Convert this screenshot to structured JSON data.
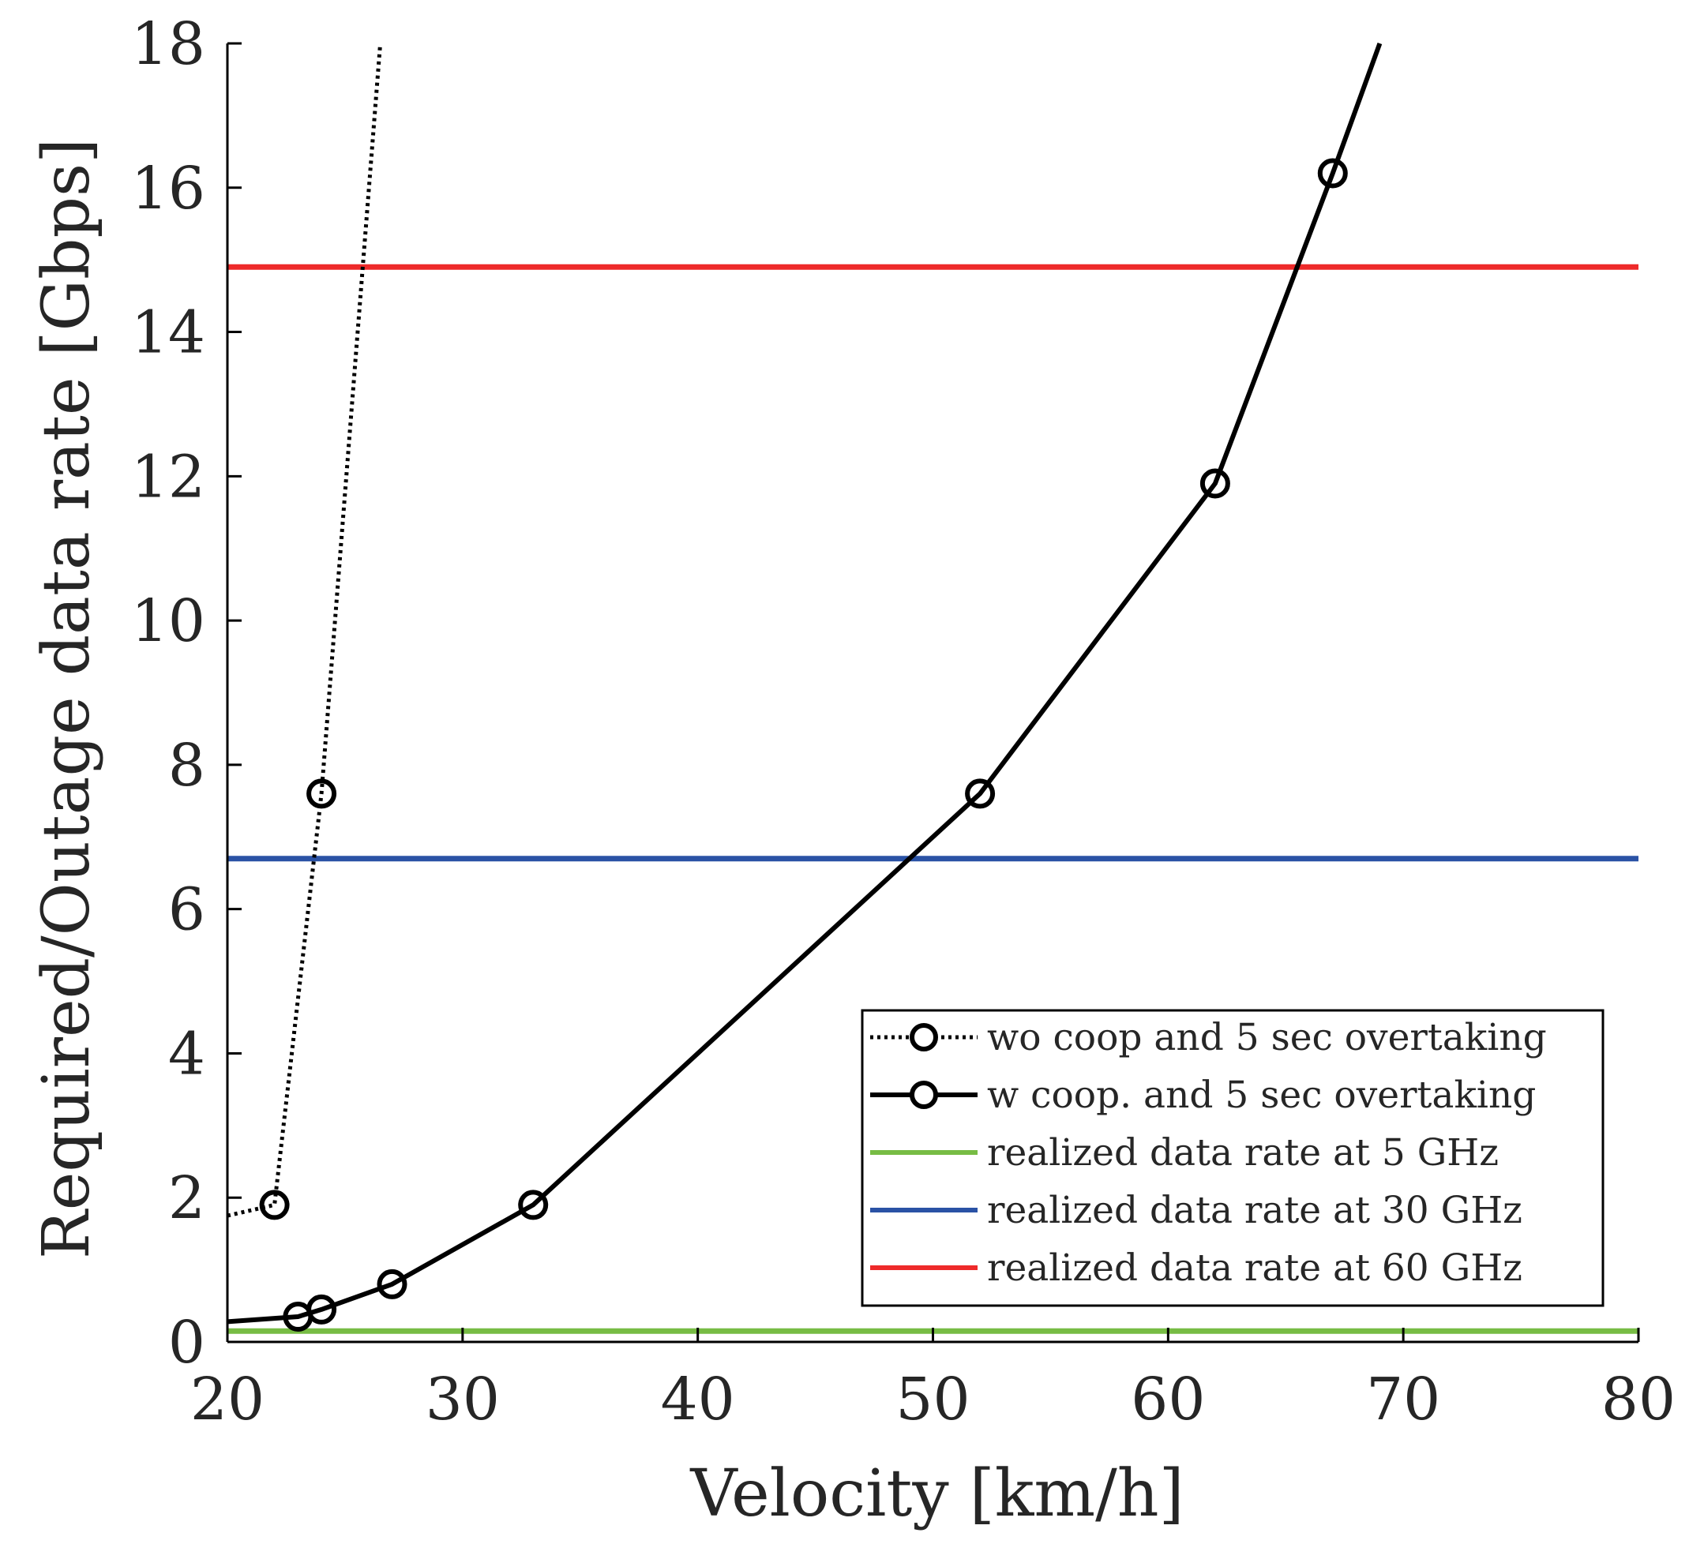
{
  "chart_data": {
    "type": "line",
    "title": "",
    "xlabel": "Velocity [km/h]",
    "ylabel": "Required/Outage data rate [Gbps]",
    "xlim": [
      20,
      80
    ],
    "ylim": [
      0,
      18
    ],
    "xticks": [
      "20",
      "30",
      "40",
      "50",
      "60",
      "70",
      "80"
    ],
    "yticks": [
      "0",
      "2",
      "4",
      "6",
      "8",
      "10",
      "12",
      "14",
      "16",
      "18"
    ],
    "grid": false,
    "legend_position": "bottom-right",
    "series": [
      {
        "name": "wo coop and 5 sec overtaking",
        "style": "dotted",
        "color": "#000000",
        "x": [
          20,
          22,
          24,
          26.5
        ],
        "y": [
          1.75,
          1.9,
          7.6,
          18.0
        ],
        "markers": [
          22,
          24
        ]
      },
      {
        "name": "w coop. and 5 sec overtaking",
        "style": "solid",
        "color": "#000000",
        "x": [
          20,
          23,
          24,
          27,
          33,
          52,
          62,
          67,
          69
        ],
        "y": [
          0.28,
          0.35,
          0.45,
          0.8,
          1.9,
          7.6,
          11.9,
          16.2,
          18.0
        ],
        "markers": [
          23,
          24,
          27,
          33,
          52,
          62,
          67
        ]
      },
      {
        "name": "realized data rate at 5 GHz",
        "style": "solid",
        "color": "#77bc44",
        "x": [
          20,
          80
        ],
        "y": [
          0.15,
          0.15
        ],
        "markers": []
      },
      {
        "name": "realized data rate at 30 GHz",
        "style": "solid",
        "color": "#2a52a5",
        "x": [
          20,
          80
        ],
        "y": [
          6.7,
          6.7
        ],
        "markers": []
      },
      {
        "name": "realized data rate at 60 GHz",
        "style": "solid",
        "color": "#ee2a2a",
        "x": [
          20,
          80
        ],
        "y": [
          14.9,
          14.9
        ],
        "markers": []
      }
    ]
  }
}
